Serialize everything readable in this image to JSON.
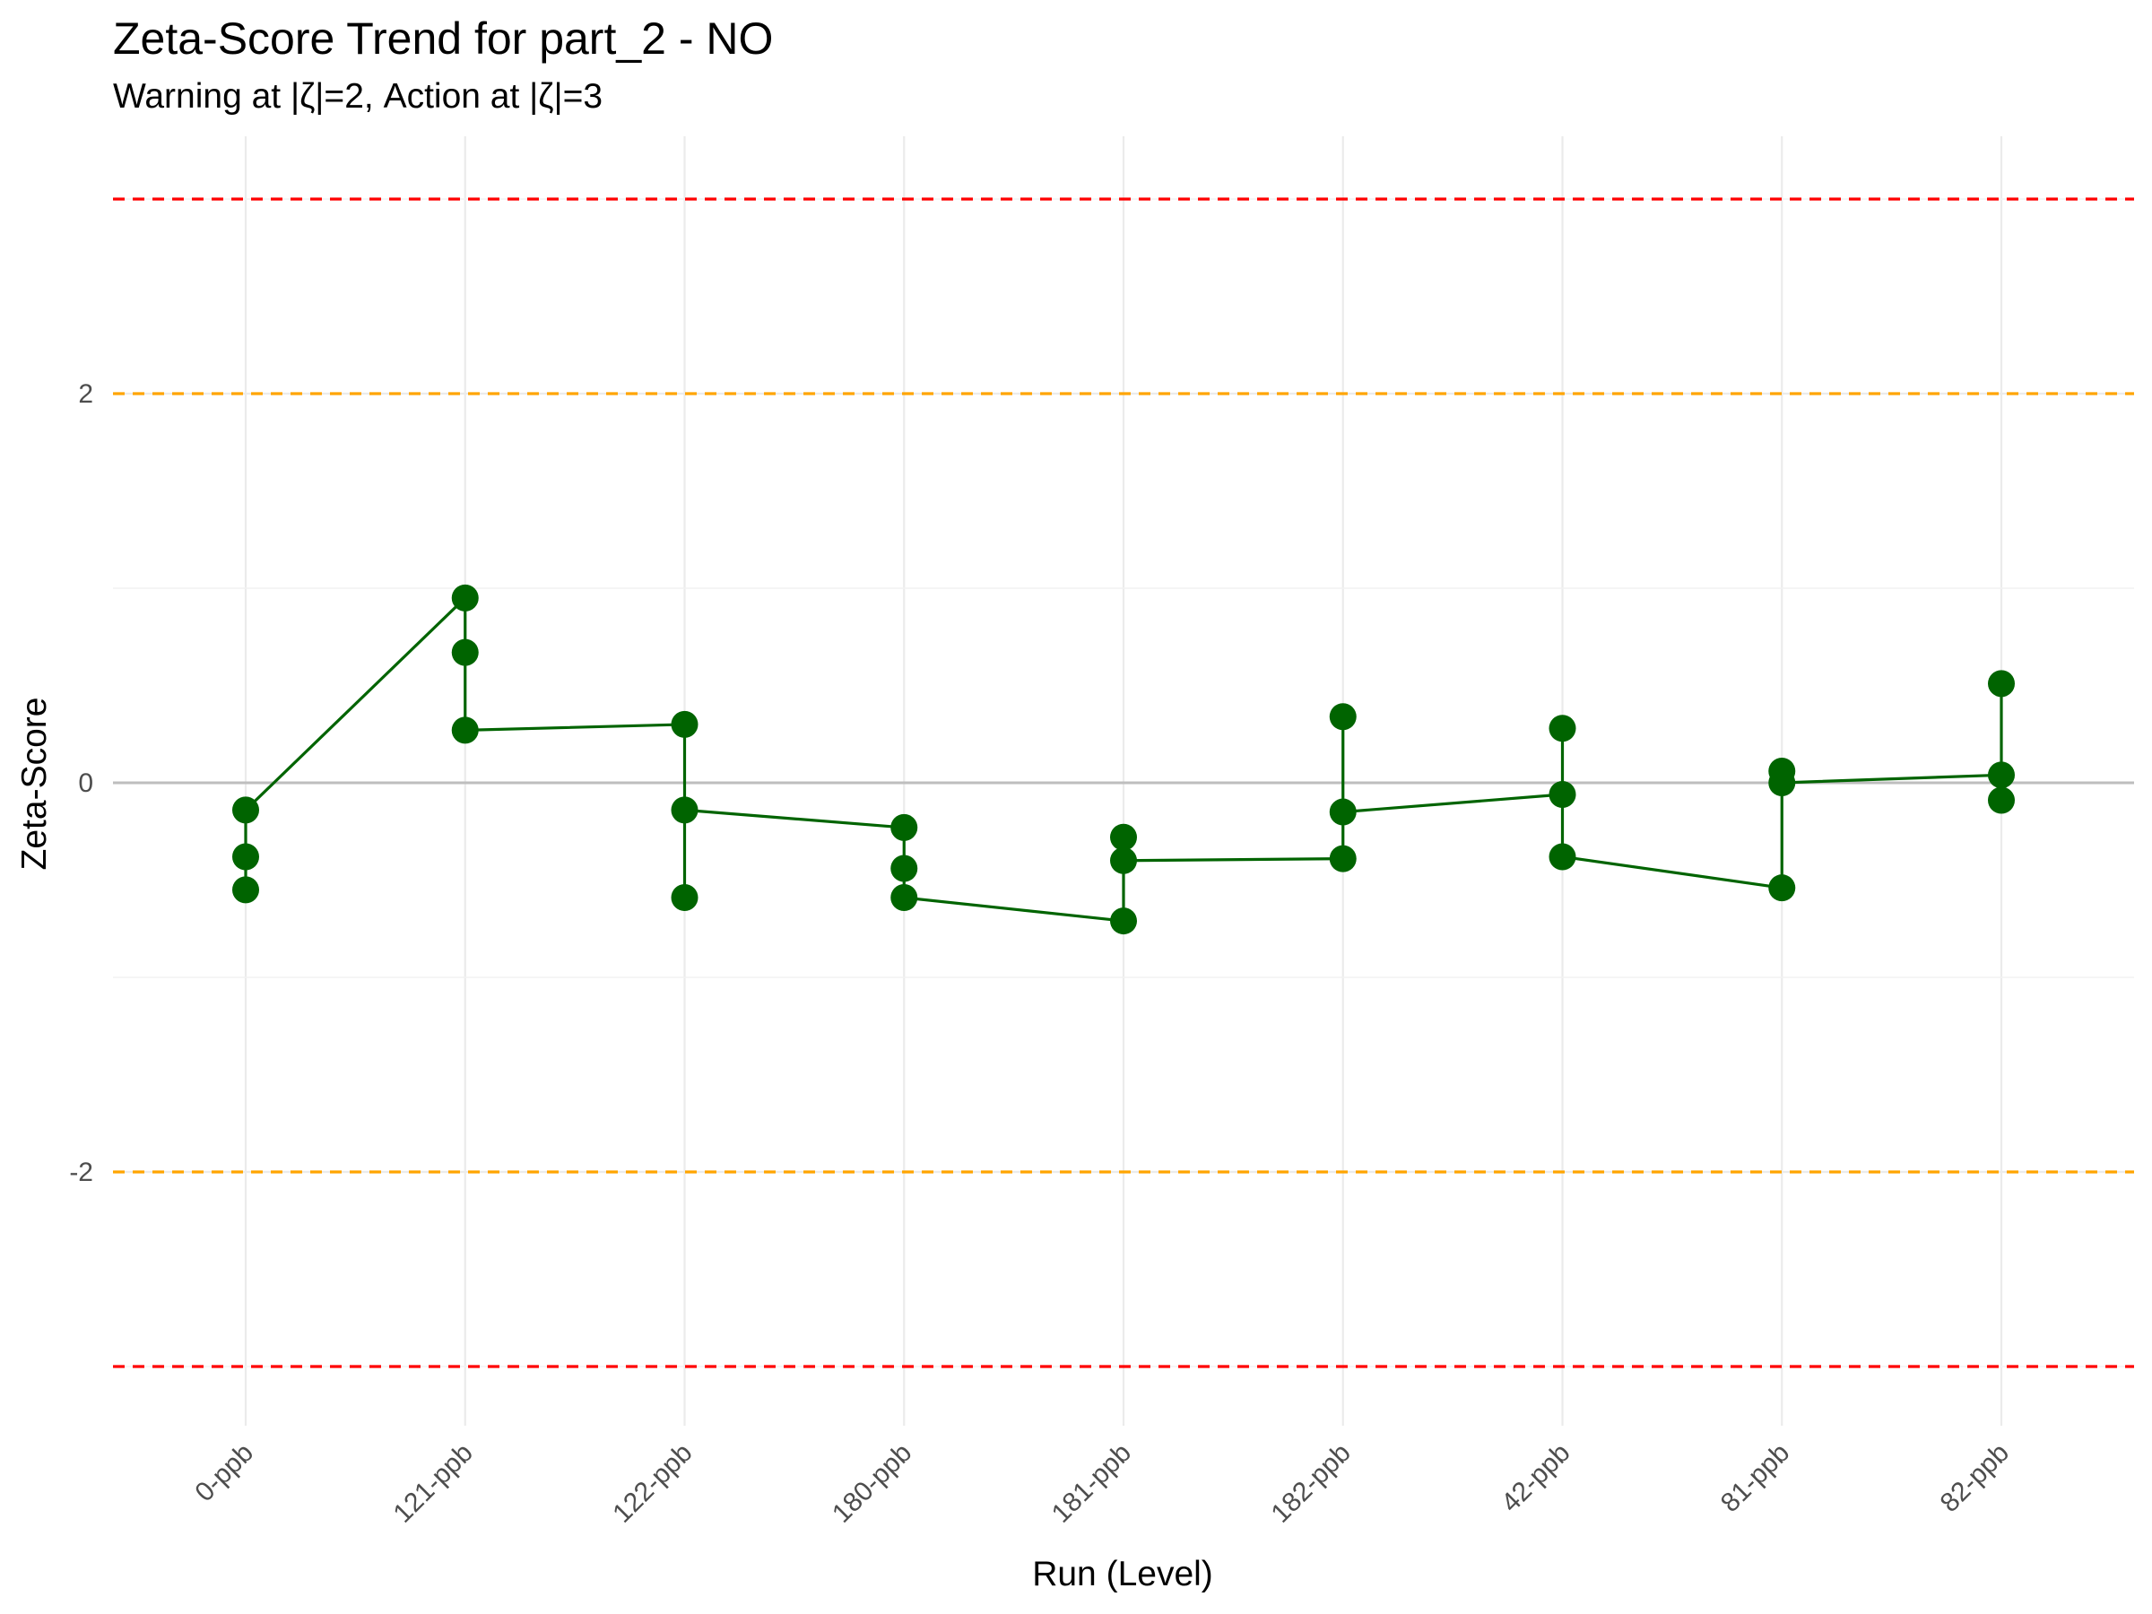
{
  "chart_data": {
    "type": "line",
    "title": "Zeta-Score Trend for part_2 - NO",
    "subtitle": "Warning at |ζ|=2, Action at |ζ|=3",
    "xlabel": "Run (Level)",
    "ylabel": "Zeta-Score",
    "categories": [
      "0-ppb",
      "121-ppb",
      "122-ppb",
      "180-ppb",
      "181-ppb",
      "182-ppb",
      "42-ppb",
      "81-ppb",
      "82-ppb"
    ],
    "y_ticks": [
      "2",
      "0",
      "-2"
    ],
    "y_tick_values": [
      2,
      0,
      -2
    ],
    "ylim": [
      -3.3,
      3.3
    ],
    "grid": true,
    "legend": "none",
    "reference_lines": [
      {
        "y": 3,
        "kind": "action",
        "color": "#ff0000"
      },
      {
        "y": 2,
        "kind": "warning",
        "color": "#ffa500"
      },
      {
        "y": 0,
        "kind": "zero",
        "color": "#bebebe"
      },
      {
        "y": -2,
        "kind": "warning",
        "color": "#ffa500"
      },
      {
        "y": -3,
        "kind": "action",
        "color": "#ff0000"
      }
    ],
    "series_color": "#006400",
    "points": [
      {
        "x": "0-ppb",
        "y": -0.14
      },
      {
        "x": "0-ppb",
        "y": -0.38
      },
      {
        "x": "0-ppb",
        "y": -0.55
      },
      {
        "x": "121-ppb",
        "y": 0.95
      },
      {
        "x": "121-ppb",
        "y": 0.67
      },
      {
        "x": "121-ppb",
        "y": 0.27
      },
      {
        "x": "122-ppb",
        "y": 0.3
      },
      {
        "x": "122-ppb",
        "y": -0.14
      },
      {
        "x": "122-ppb",
        "y": -0.59
      },
      {
        "x": "180-ppb",
        "y": -0.23
      },
      {
        "x": "180-ppb",
        "y": -0.44
      },
      {
        "x": "180-ppb",
        "y": -0.59
      },
      {
        "x": "181-ppb",
        "y": -0.28
      },
      {
        "x": "181-ppb",
        "y": -0.4
      },
      {
        "x": "181-ppb",
        "y": -0.71
      },
      {
        "x": "182-ppb",
        "y": 0.34
      },
      {
        "x": "182-ppb",
        "y": -0.15
      },
      {
        "x": "182-ppb",
        "y": -0.39
      },
      {
        "x": "42-ppb",
        "y": 0.28
      },
      {
        "x": "42-ppb",
        "y": -0.06
      },
      {
        "x": "42-ppb",
        "y": -0.38
      },
      {
        "x": "81-ppb",
        "y": 0.06
      },
      {
        "x": "81-ppb",
        "y": 0.0
      },
      {
        "x": "81-ppb",
        "y": -0.54
      },
      {
        "x": "82-ppb",
        "y": 0.51
      },
      {
        "x": "82-ppb",
        "y": 0.04
      },
      {
        "x": "82-ppb",
        "y": -0.09
      }
    ],
    "line_path": [
      {
        "x": "0-ppb",
        "y": -0.55
      },
      {
        "x": "0-ppb",
        "y": -0.38
      },
      {
        "x": "0-ppb",
        "y": -0.14
      },
      {
        "x": "121-ppb",
        "y": 0.95
      },
      {
        "x": "121-ppb",
        "y": 0.67
      },
      {
        "x": "121-ppb",
        "y": 0.27
      },
      {
        "x": "122-ppb",
        "y": 0.3
      },
      {
        "x": "122-ppb",
        "y": -0.59
      },
      {
        "x": "122-ppb",
        "y": -0.14
      },
      {
        "x": "180-ppb",
        "y": -0.23
      },
      {
        "x": "180-ppb",
        "y": -0.44
      },
      {
        "x": "180-ppb",
        "y": -0.59
      },
      {
        "x": "181-ppb",
        "y": -0.71
      },
      {
        "x": "181-ppb",
        "y": -0.28
      },
      {
        "x": "181-ppb",
        "y": -0.4
      },
      {
        "x": "182-ppb",
        "y": -0.39
      },
      {
        "x": "182-ppb",
        "y": 0.34
      },
      {
        "x": "182-ppb",
        "y": -0.15
      },
      {
        "x": "42-ppb",
        "y": -0.06
      },
      {
        "x": "42-ppb",
        "y": 0.28
      },
      {
        "x": "42-ppb",
        "y": -0.38
      },
      {
        "x": "81-ppb",
        "y": -0.54
      },
      {
        "x": "81-ppb",
        "y": 0.06
      },
      {
        "x": "81-ppb",
        "y": 0.0
      },
      {
        "x": "82-ppb",
        "y": 0.04
      },
      {
        "x": "82-ppb",
        "y": 0.51
      },
      {
        "x": "82-ppb",
        "y": -0.09
      }
    ]
  }
}
